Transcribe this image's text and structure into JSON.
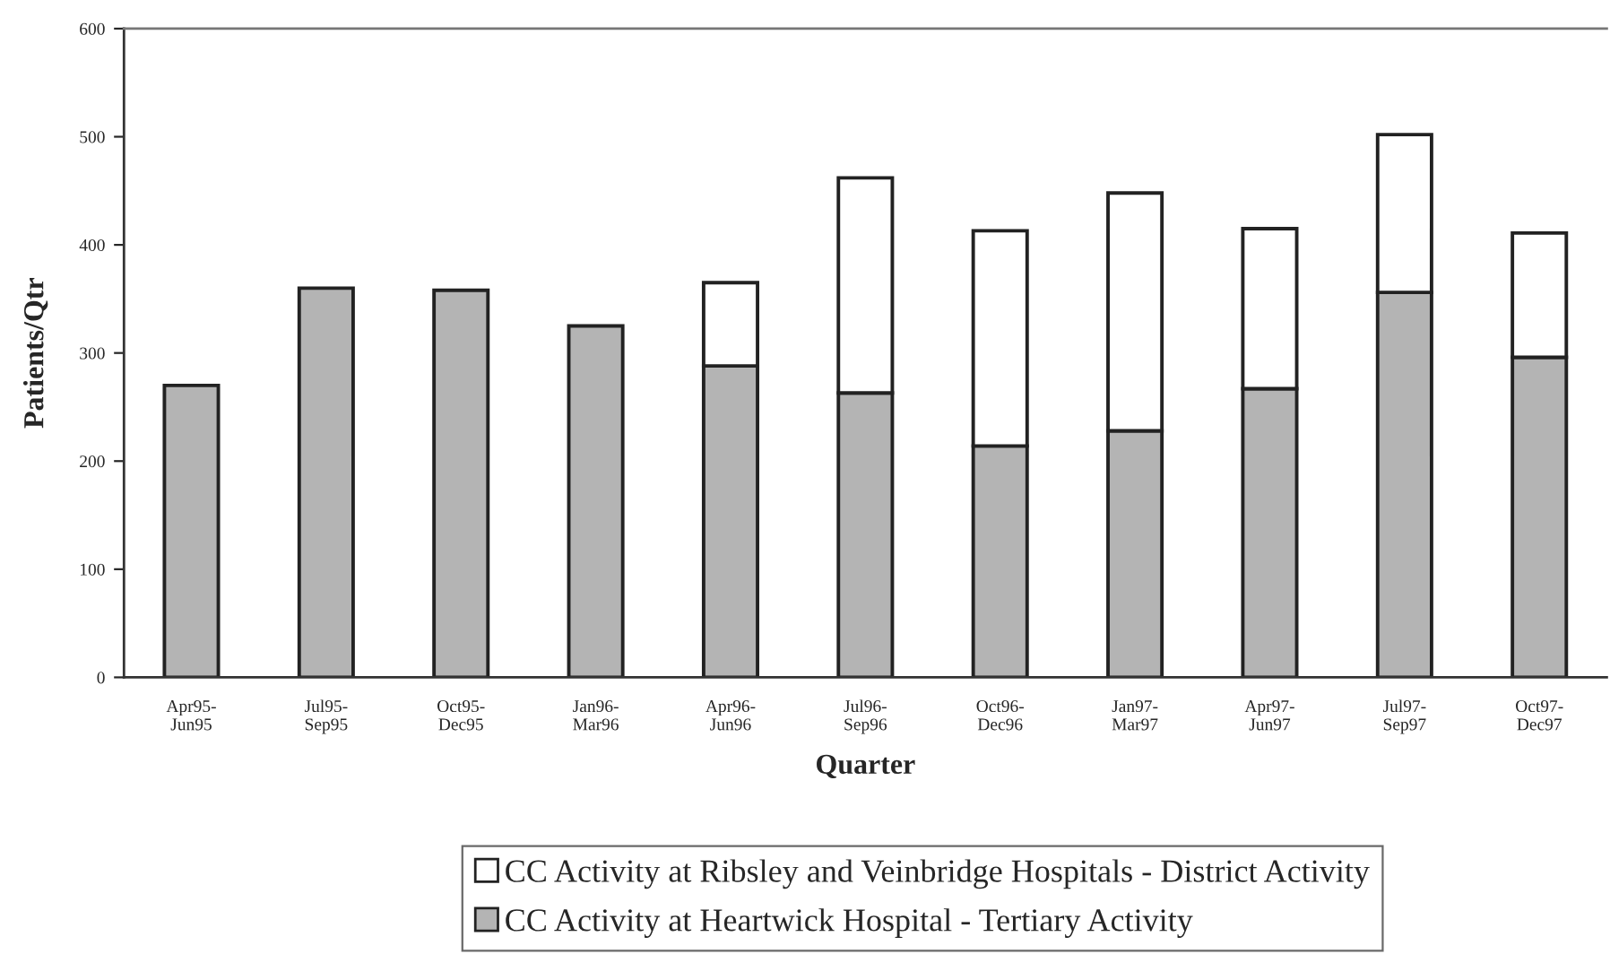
{
  "chart_data": {
    "type": "bar",
    "stacked": true,
    "xlabel": "Quarter",
    "ylabel": "Patients/Qtr",
    "categories": [
      "Apr95-\nJun95",
      "Jul95-\nSep95",
      "Oct95-\nDec95",
      "Jan96-\nMar96",
      "Apr96-\nJun96",
      "Jul96-\nSep96",
      "Oct96-\nDec96",
      "Jan97-\nMar97",
      "Apr97-\nJun97",
      "Jul97-\nSep97",
      "Oct97-\nDec97"
    ],
    "series": [
      {
        "name": "CC Activity at Heartwick Hospital - Tertiary Activity",
        "color": "#b4b4b4",
        "values": [
          270,
          360,
          358,
          325,
          288,
          263,
          214,
          228,
          267,
          356,
          296
        ]
      },
      {
        "name": "CC Activity at Ribsley and Veinbridge Hospitals - District Activity",
        "color": "#ffffff",
        "values": [
          null,
          null,
          null,
          null,
          77,
          199,
          199,
          220,
          148,
          146,
          115
        ]
      }
    ],
    "ylim": [
      0,
      600
    ],
    "yticks": [
      0,
      100,
      200,
      300,
      400,
      500,
      600
    ],
    "grid": false,
    "legend": "bottom"
  }
}
